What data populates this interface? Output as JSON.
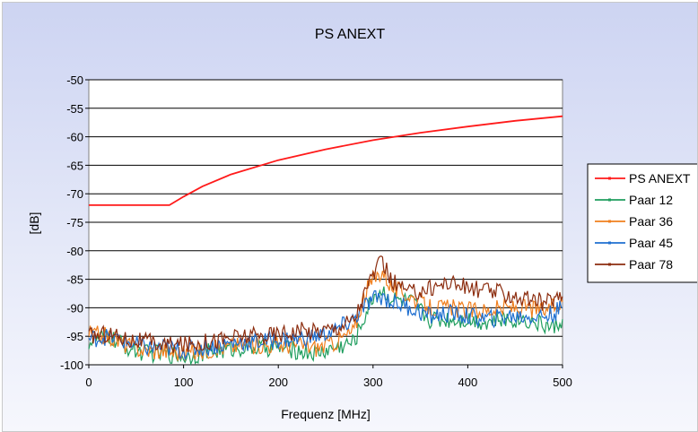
{
  "chart_data": {
    "type": "line",
    "title": "PS ANEXT",
    "xlabel": "Frequenz [MHz]",
    "ylabel": "[dB]",
    "xlim": [
      0,
      500
    ],
    "ylim": [
      -100,
      -50
    ],
    "xticks": [
      "0",
      "100",
      "200",
      "300",
      "400",
      "500"
    ],
    "yticks": [
      "-50",
      "-55",
      "-60",
      "-65",
      "-70",
      "-75",
      "-80",
      "-85",
      "-90",
      "-95",
      "-100"
    ],
    "grid": "horizontal",
    "legend_position": "right",
    "series": [
      {
        "name": "PS ANEXT",
        "color": "#ff1a1a",
        "x": [
          0,
          50,
          85,
          100,
          120,
          150,
          200,
          250,
          300,
          350,
          400,
          450,
          500
        ],
        "values": [
          -72,
          -72,
          -72,
          -70.5,
          -68.7,
          -66.6,
          -64.1,
          -62.2,
          -60.6,
          -59.3,
          -58.2,
          -57.2,
          -56.4
        ]
      },
      {
        "name": "Paar 12",
        "color": "#1f9e5e",
        "x": [
          0,
          20,
          40,
          60,
          80,
          100,
          120,
          140,
          160,
          180,
          200,
          220,
          240,
          260,
          280,
          290,
          300,
          310,
          320,
          340,
          360,
          380,
          400,
          420,
          440,
          460,
          480,
          490,
          500
        ],
        "values": [
          -96,
          -95,
          -97,
          -98,
          -98,
          -98.5,
          -98,
          -97.5,
          -97,
          -97,
          -97,
          -97.5,
          -98,
          -97,
          -96,
          -92,
          -88,
          -87,
          -88.5,
          -89,
          -92,
          -92,
          -92,
          -92.5,
          -92,
          -92,
          -93,
          -93.5,
          -92
        ]
      },
      {
        "name": "Paar 36",
        "color": "#f07f1e",
        "x": [
          0,
          20,
          40,
          60,
          80,
          100,
          120,
          140,
          160,
          180,
          200,
          220,
          240,
          260,
          280,
          290,
          300,
          310,
          320,
          340,
          360,
          380,
          400,
          420,
          440,
          460,
          480,
          490,
          500
        ],
        "values": [
          -94.5,
          -95,
          -96.5,
          -97.5,
          -97.5,
          -98,
          -97.5,
          -97,
          -96.5,
          -96.5,
          -96.5,
          -96.5,
          -97,
          -96,
          -94,
          -88,
          -85,
          -83.5,
          -86.5,
          -88,
          -90,
          -90,
          -90.5,
          -90.5,
          -90,
          -90,
          -90.5,
          -90,
          -89
        ]
      },
      {
        "name": "Paar 45",
        "color": "#1f6fd0",
        "x": [
          0,
          20,
          40,
          60,
          80,
          100,
          120,
          140,
          160,
          180,
          200,
          220,
          240,
          260,
          280,
          290,
          300,
          310,
          320,
          340,
          360,
          380,
          400,
          420,
          440,
          460,
          480,
          490,
          500
        ],
        "values": [
          -95.5,
          -95,
          -96,
          -97,
          -97,
          -97.5,
          -97,
          -96.5,
          -96,
          -96,
          -95.5,
          -95.5,
          -95,
          -94,
          -92,
          -90,
          -88.5,
          -88,
          -89,
          -90,
          -91.5,
          -91,
          -91.5,
          -92,
          -91.5,
          -91.5,
          -91.5,
          -91,
          -90
        ]
      },
      {
        "name": "Paar 78",
        "color": "#8c2d0f",
        "x": [
          0,
          20,
          40,
          60,
          80,
          100,
          120,
          140,
          160,
          180,
          200,
          220,
          240,
          260,
          280,
          290,
          300,
          310,
          320,
          340,
          360,
          380,
          400,
          420,
          440,
          460,
          480,
          490,
          500
        ],
        "values": [
          -95,
          -94.5,
          -95.5,
          -96,
          -96.5,
          -96.5,
          -96,
          -95.5,
          -95,
          -95,
          -94.5,
          -94,
          -94,
          -93.5,
          -92,
          -88,
          -84,
          -82,
          -85.5,
          -87.5,
          -86.5,
          -85.5,
          -86.5,
          -87,
          -87.5,
          -88.5,
          -89,
          -88.5,
          -88
        ]
      }
    ]
  }
}
